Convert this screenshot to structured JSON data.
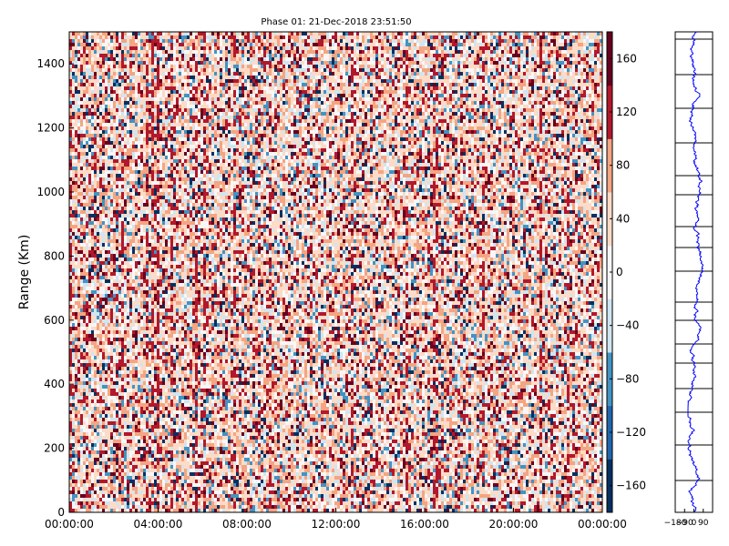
{
  "chart_data": [
    {
      "type": "heatmap",
      "title": "Phase 01: 21-Dec-2018 23:51:50",
      "ylabel": "Range (Km)",
      "xlabel": "",
      "x_ticks": [
        "00:00:00",
        "04:00:00",
        "08:00:00",
        "12:00:00",
        "16:00:00",
        "20:00:00",
        "00:00:00"
      ],
      "y_ticks": [
        0,
        200,
        400,
        600,
        800,
        1000,
        1200,
        1400
      ],
      "ylim": [
        0,
        1500
      ],
      "grid": false,
      "colormap": "RdBu_r",
      "colorbar": {
        "ticks": [
          160,
          120,
          80,
          40,
          0,
          -40,
          -80,
          -120,
          -160
        ],
        "tick_labels": [
          "160",
          "120",
          "80",
          "40",
          "0",
          "−40",
          "−80",
          "−120",
          "−160"
        ],
        "range": [
          -180,
          180
        ]
      },
      "colors": {
        "deep_red": "#67001f",
        "red": "#b2182b",
        "salmon": "#f4a582",
        "light": "#fddbc7",
        "white": "#f7f7f7",
        "light_blue": "#d1e5f0",
        "blue": "#4393c3",
        "deep_blue": "#053061"
      }
    },
    {
      "type": "line",
      "series_color": "#0000ff",
      "x_tick_labels": [
        "−180",
        "−90",
        "0",
        "90"
      ],
      "xlim": [
        -180,
        180
      ],
      "ylim": [
        0,
        1500
      ]
    }
  ]
}
